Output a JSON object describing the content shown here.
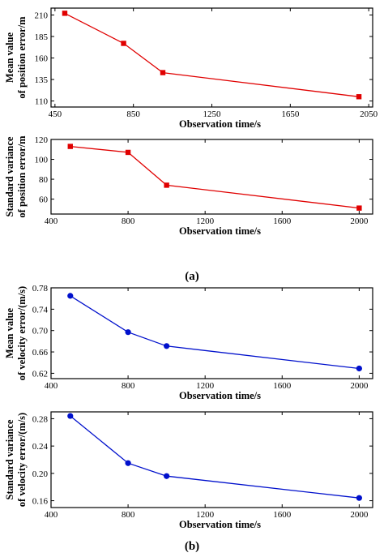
{
  "captions": {
    "top": "(a)",
    "bottom": "(b)"
  },
  "chart_data": [
    {
      "type": "line",
      "xlabel": "Observation time/s",
      "ylabel": [
        "Mean value",
        "of position error/m"
      ],
      "xlim": [
        430,
        2070
      ],
      "ylim": [
        103,
        218
      ],
      "xticks": [
        450,
        850,
        1250,
        1650,
        2050
      ],
      "yticks": [
        110,
        135,
        160,
        185,
        210
      ],
      "color": "#e00000",
      "marker": "square",
      "series": [
        {
          "x": [
            500,
            800,
            1000,
            2000
          ],
          "y": [
            212,
            177,
            143,
            115
          ]
        }
      ]
    },
    {
      "type": "line",
      "xlabel": "Observation time/s",
      "ylabel": [
        "Standard variance",
        "of position error/m"
      ],
      "xlim": [
        400,
        2070
      ],
      "ylim": [
        45,
        120
      ],
      "xticks": [
        400,
        800,
        1200,
        1600,
        2000
      ],
      "yticks": [
        60,
        80,
        100,
        120
      ],
      "color": "#e00000",
      "marker": "square",
      "series": [
        {
          "x": [
            500,
            800,
            1000,
            2000
          ],
          "y": [
            113,
            107,
            74,
            51
          ]
        }
      ]
    },
    {
      "type": "line",
      "xlabel": "Observation time/s",
      "ylabel": [
        "Mean value",
        "of velocity error/(m/s)"
      ],
      "xlim": [
        400,
        2070
      ],
      "ylim": [
        0.61,
        0.78
      ],
      "xticks": [
        400,
        800,
        1200,
        1600,
        2000
      ],
      "yticks": [
        0.62,
        0.66,
        0.7,
        0.74,
        0.78
      ],
      "ytick_decimals": 2,
      "color": "#0010cc",
      "marker": "circle",
      "series": [
        {
          "x": [
            500,
            800,
            1000,
            2000
          ],
          "y": [
            0.765,
            0.697,
            0.671,
            0.629
          ]
        }
      ]
    },
    {
      "type": "line",
      "xlabel": "Observation time/s",
      "ylabel": [
        "Standard variance",
        "of velocity error/(m/s)"
      ],
      "xlim": [
        400,
        2070
      ],
      "ylim": [
        0.15,
        0.29
      ],
      "xticks": [
        400,
        800,
        1200,
        1600,
        2000
      ],
      "yticks": [
        0.16,
        0.2,
        0.24,
        0.28
      ],
      "ytick_decimals": 2,
      "color": "#0010cc",
      "marker": "circle",
      "series": [
        {
          "x": [
            500,
            800,
            1000,
            2000
          ],
          "y": [
            0.284,
            0.215,
            0.196,
            0.164
          ]
        }
      ]
    }
  ]
}
